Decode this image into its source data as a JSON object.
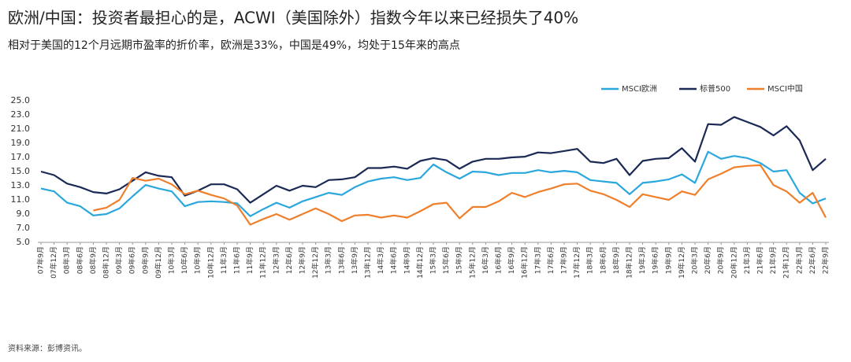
{
  "title": "欧洲/中国：投资者最担心的是，ACWI（美国除外）指数今年以来已经损失了40%",
  "subtitle": "相对于美国的12个月远期市盈率的折价率，欧洲是33%，中国是49%，均处于15年来的高点",
  "source": "资料来源：彭博资讯。",
  "chart_data": {
    "type": "line",
    "categories": [
      "07年9月",
      "07年12月",
      "08年3月",
      "08年6月",
      "08年9月",
      "08年12月",
      "09年3月",
      "09年6月",
      "09年9月",
      "09年12月",
      "10年3月",
      "10年6月",
      "10年9月",
      "10年12月",
      "11年3月",
      "11年6月",
      "11年9月",
      "11年12月",
      "12年3月",
      "12年6月",
      "12年9月",
      "12年12月",
      "13年3月",
      "13年6月",
      "13年9月",
      "13年12月",
      "14年3月",
      "14年6月",
      "14年9月",
      "14年12月",
      "15年3月",
      "15年6月",
      "15年9月",
      "15年12月",
      "16年3月",
      "16年6月",
      "16年9月",
      "16年12月",
      "17年3月",
      "17年6月",
      "17年9月",
      "17年12月",
      "18年3月",
      "18年6月",
      "18年9月",
      "18年12月",
      "19年3月",
      "19年6月",
      "19年9月",
      "19年12月",
      "20年3月",
      "20年6月",
      "20年9月",
      "20年12月",
      "21年3月",
      "21年6月",
      "21年9月",
      "21年12月",
      "22年3月",
      "22年6月",
      "22年9月"
    ],
    "series": [
      {
        "name": "MSCI欧洲",
        "color": "#2aa7dc",
        "values": [
          12.6,
          12.2,
          10.6,
          10.1,
          8.8,
          9.0,
          9.8,
          11.5,
          13.1,
          12.6,
          12.2,
          10.1,
          10.7,
          10.8,
          10.7,
          10.5,
          8.7,
          9.7,
          10.6,
          9.9,
          10.8,
          11.4,
          12.0,
          11.7,
          12.8,
          13.6,
          14.0,
          14.2,
          13.8,
          14.1,
          16.0,
          14.9,
          14.0,
          15.0,
          14.9,
          14.5,
          14.8,
          14.8,
          15.2,
          14.9,
          15.1,
          14.9,
          13.8,
          13.6,
          13.4,
          11.8,
          13.4,
          13.6,
          13.9,
          14.6,
          13.4,
          17.8,
          16.8,
          17.2,
          16.9,
          16.2,
          15.0,
          15.2,
          12.0,
          10.5,
          11.2
        ]
      },
      {
        "name": "标普500",
        "color": "#1b2a55",
        "values": [
          15.0,
          14.5,
          13.3,
          12.8,
          12.1,
          11.9,
          12.5,
          13.7,
          14.9,
          14.4,
          14.2,
          11.6,
          12.3,
          13.2,
          13.2,
          12.5,
          10.6,
          11.8,
          13.0,
          12.3,
          13.0,
          12.8,
          13.8,
          13.9,
          14.2,
          15.5,
          15.5,
          15.7,
          15.4,
          16.5,
          16.9,
          16.6,
          15.4,
          16.4,
          16.8,
          16.8,
          17.0,
          17.1,
          17.7,
          17.6,
          17.9,
          18.2,
          16.4,
          16.2,
          16.8,
          14.5,
          16.5,
          16.8,
          16.9,
          18.3,
          16.4,
          21.7,
          21.6,
          22.7,
          22.0,
          21.3,
          20.1,
          21.4,
          19.4,
          15.2,
          16.8
        ]
      },
      {
        "name": "MSCI中国",
        "color": "#f07f2c",
        "values": [
          null,
          null,
          null,
          null,
          9.5,
          9.9,
          11.0,
          14.1,
          13.7,
          14.0,
          13.2,
          11.8,
          12.3,
          11.7,
          11.2,
          10.2,
          7.5,
          8.3,
          9.0,
          8.2,
          9.0,
          9.8,
          9.0,
          8.0,
          8.8,
          8.9,
          8.5,
          8.8,
          8.5,
          9.4,
          10.4,
          10.6,
          8.4,
          10.0,
          10.0,
          10.8,
          12.0,
          11.4,
          12.1,
          12.6,
          13.2,
          13.3,
          12.3,
          11.8,
          11.0,
          10.0,
          11.8,
          11.4,
          11.0,
          12.2,
          11.7,
          13.9,
          14.7,
          15.6,
          15.8,
          15.9,
          13.1,
          12.2,
          10.6,
          12.0,
          8.5
        ]
      }
    ],
    "ylim": [
      5,
      25
    ],
    "yticks": [
      {
        "value": 5,
        "label": "5.0"
      },
      {
        "value": 7,
        "label": "7.0"
      },
      {
        "value": 9,
        "label": "9.0"
      },
      {
        "value": 11,
        "label": "11.0"
      },
      {
        "value": 13,
        "label": "13.0"
      },
      {
        "value": 15,
        "label": "15.0"
      },
      {
        "value": 17,
        "label": "17.0"
      },
      {
        "value": 19,
        "label": "19.0"
      },
      {
        "value": 21,
        "label": "21.0"
      },
      {
        "value": 23,
        "label": "23.0"
      },
      {
        "value": 25,
        "label": "25.0"
      }
    ],
    "grid": false,
    "legend": "top-right"
  }
}
